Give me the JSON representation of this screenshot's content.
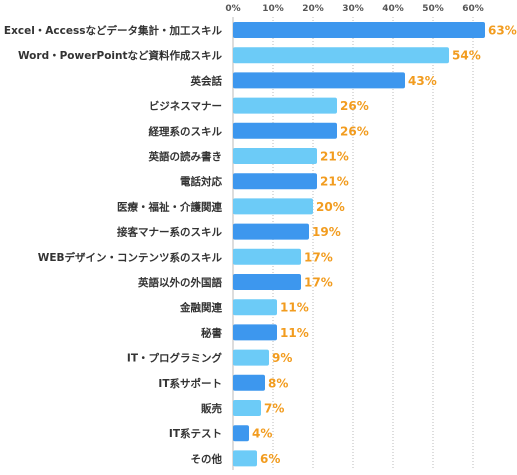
{
  "chart_data": {
    "type": "bar",
    "orientation": "horizontal",
    "categories": [
      "Excel・Accessなどデータ集計・加工スキル",
      "Word・PowerPointなど資料作成スキル",
      "英会話",
      "ビジネスマナー",
      "経理系のスキル",
      "英語の読み書き",
      "電話対応",
      "医療・福祉・介護関連",
      "接客マナー系のスキル",
      "WEBデザイン・コンテンツ系のスキル",
      "英語以外の外国語",
      "金融関連",
      "秘書",
      "IT・プログラミング",
      "IT系サポート",
      "販売",
      "IT系テスト",
      "その他"
    ],
    "values": [
      63,
      54,
      43,
      26,
      26,
      21,
      21,
      20,
      19,
      17,
      17,
      11,
      11,
      9,
      8,
      7,
      4,
      6
    ],
    "value_labels": [
      "63%",
      "54%",
      "43%",
      "26%",
      "26%",
      "21%",
      "21%",
      "20%",
      "19%",
      "17%",
      "17%",
      "11%",
      "11%",
      "9%",
      "8%",
      "7%",
      "4%",
      "6%"
    ],
    "bar_colors": [
      "#3d97ee",
      "#6ccbf7",
      "#3d97ee",
      "#6ccbf7",
      "#3d97ee",
      "#6ccbf7",
      "#3d97ee",
      "#6ccbf7",
      "#3d97ee",
      "#6ccbf7",
      "#3d97ee",
      "#6ccbf7",
      "#3d97ee",
      "#6ccbf7",
      "#3d97ee",
      "#6ccbf7",
      "#3d97ee",
      "#6ccbf7"
    ],
    "xticks": [
      "0%",
      "10%",
      "20%",
      "30%",
      "40%",
      "50%",
      "60%"
    ],
    "xtick_values": [
      0,
      10,
      20,
      30,
      40,
      50,
      60
    ],
    "xlim": [
      0,
      65
    ],
    "grid": true,
    "value_label_color": "#f29c1f"
  }
}
